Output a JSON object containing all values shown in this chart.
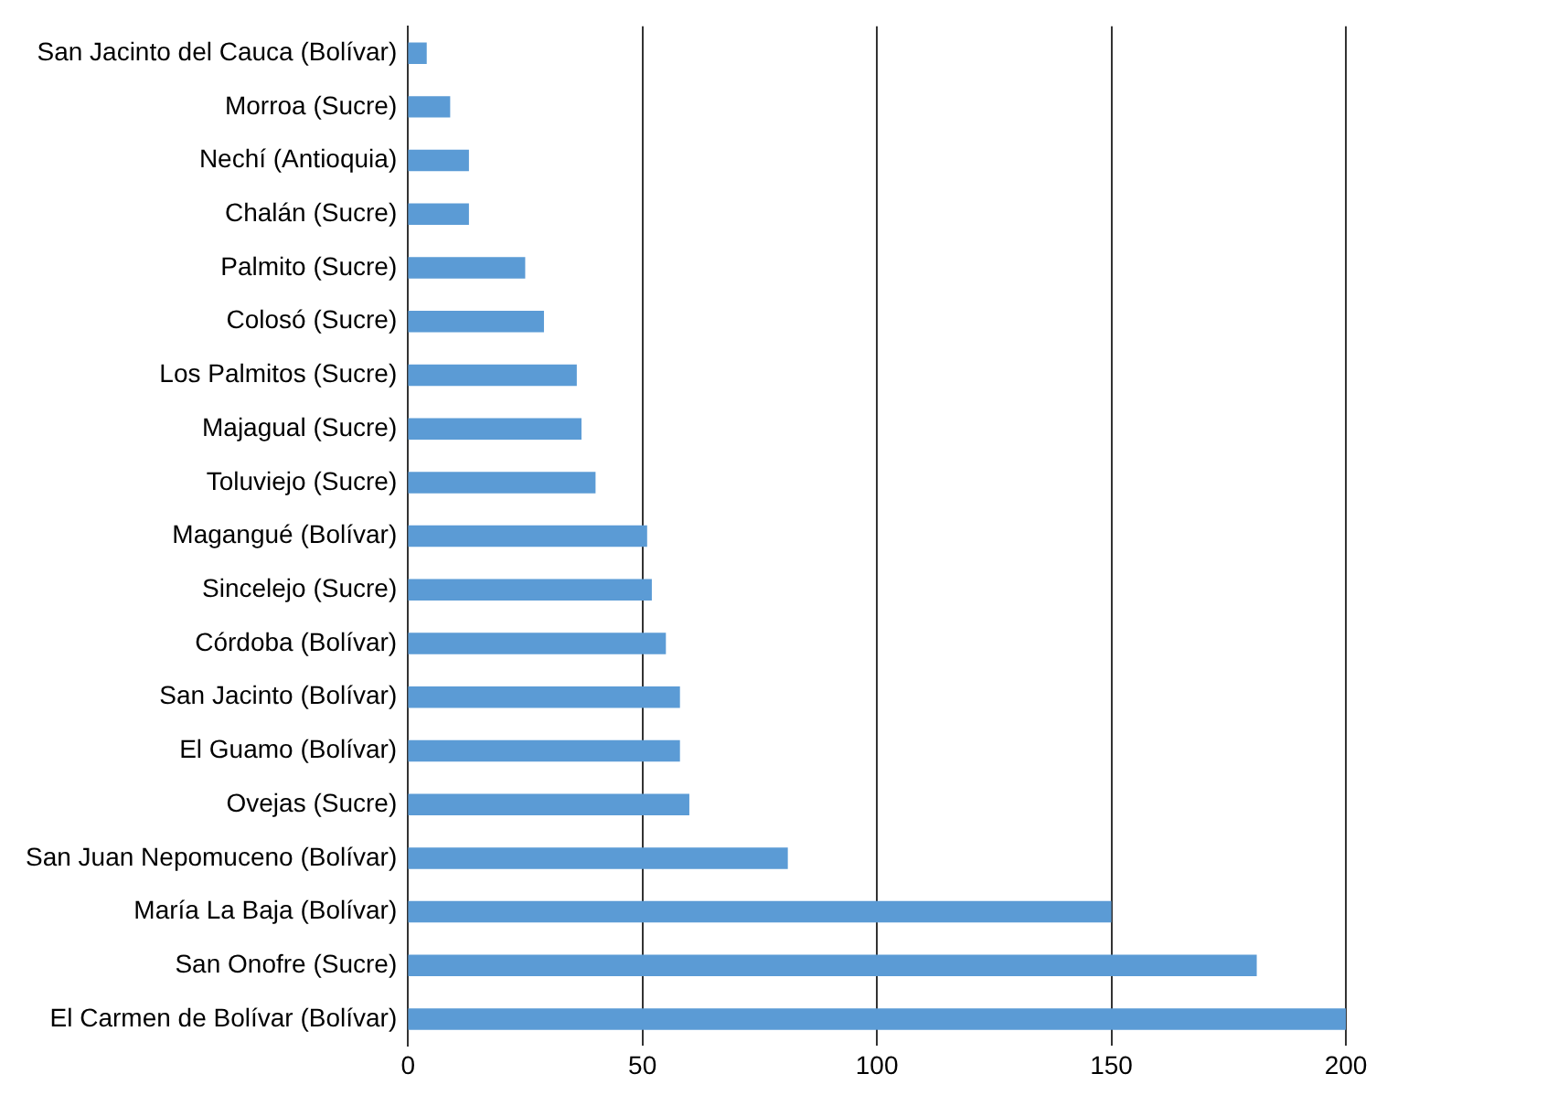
{
  "chart_data": {
    "type": "bar",
    "orientation": "horizontal",
    "categories": [
      "San Jacinto del Cauca (Bolívar)",
      "Morroa (Sucre)",
      "Nechí (Antioquia)",
      "Chalán (Sucre)",
      "Palmito (Sucre)",
      "Colosó (Sucre)",
      "Los Palmitos (Sucre)",
      "Majagual (Sucre)",
      "Toluviejo (Sucre)",
      "Magangué (Bolívar)",
      "Sincelejo (Sucre)",
      "Córdoba (Bolívar)",
      "San Jacinto (Bolívar)",
      "El Guamo (Bolívar)",
      "Ovejas (Sucre)",
      "San Juan Nepomuceno (Bolívar)",
      "María La Baja (Bolívar)",
      "San Onofre (Sucre)",
      "El Carmen de Bolívar (Bolívar)"
    ],
    "values": [
      4,
      9,
      13,
      13,
      25,
      29,
      36,
      37,
      40,
      51,
      52,
      55,
      58,
      58,
      60,
      81,
      150,
      181,
      200
    ],
    "color": "#5b9bd5",
    "xlim": [
      0,
      200
    ],
    "xticks": [
      0,
      50,
      100,
      150,
      200
    ],
    "grid": "x",
    "legend": false
  }
}
